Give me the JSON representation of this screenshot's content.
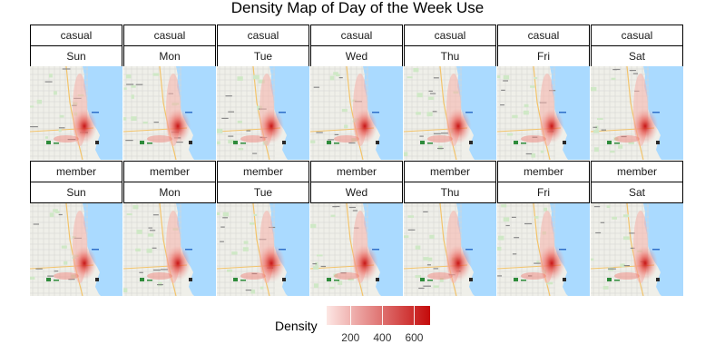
{
  "chart_data": {
    "type": "heatmap",
    "title": "Density Map of Day of the Week Use",
    "facet_rows": [
      "casual",
      "member"
    ],
    "facet_cols": [
      "Sun",
      "Mon",
      "Tue",
      "Wed",
      "Thu",
      "Fri",
      "Sat"
    ],
    "legend": {
      "title": "Density",
      "ticks": [
        200,
        400,
        600
      ],
      "range": [
        50,
        700
      ],
      "colors": [
        "#fde7e4",
        "#c40a0a"
      ],
      "placement": "bottom"
    },
    "peak_density": {
      "casual": [
        470,
        500,
        470,
        460,
        520,
        440,
        520
      ],
      "member": [
        430,
        510,
        640,
        600,
        560,
        600,
        470
      ]
    }
  }
}
